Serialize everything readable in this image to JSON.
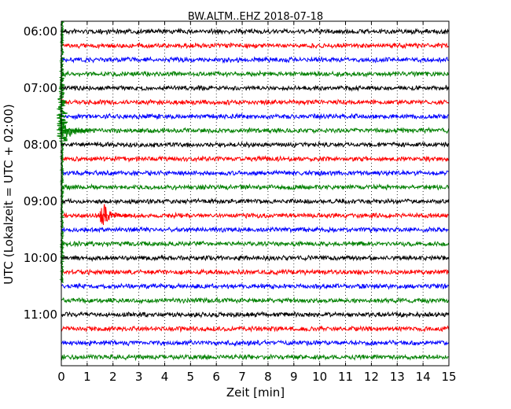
{
  "chart_data": {
    "type": "line",
    "title": "BW.ALTM..EHZ 2018-07-18",
    "xlabel": "Zeit  [min]",
    "ylabel": "UTC (Lokalzeit = UTC + 02:00)",
    "xlim": [
      0,
      15
    ],
    "x_ticks": [
      "0",
      "1",
      "2",
      "3",
      "4",
      "5",
      "6",
      "7",
      "8",
      "9",
      "10",
      "11",
      "12",
      "13",
      "14",
      "15"
    ],
    "y_ticks": [
      "06:00",
      "07:00",
      "08:00",
      "09:00",
      "10:00",
      "11:00"
    ],
    "grid": true,
    "trace_interval_min": 15,
    "trace_count": 24,
    "trace_colors": [
      "#000000",
      "#ff0000",
      "#0000ff",
      "#008000"
    ],
    "events": [
      {
        "trace_start": "07:45",
        "x_min": 0.05,
        "note": "large signal"
      },
      {
        "trace_start": "09:15",
        "x_min": 1.65,
        "note": "burst"
      }
    ]
  }
}
